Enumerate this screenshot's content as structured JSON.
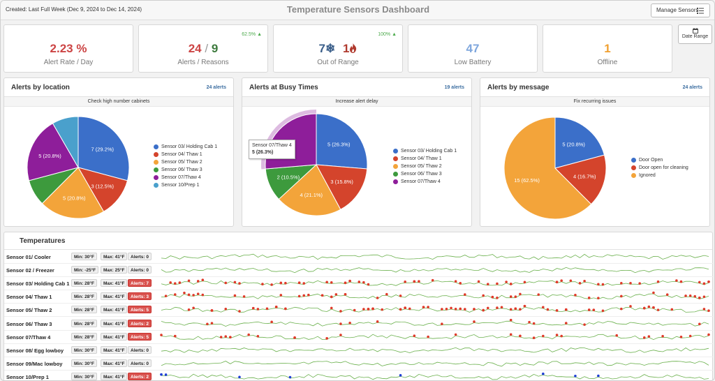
{
  "header": {
    "created": "Created: Last Full Week (Dec 9, 2024 to Dec 14, 2024)",
    "title": "Temperature Sensors Dashboard",
    "manage_label": "Manage Sensors",
    "date_range_label": "Date Range"
  },
  "kpis": {
    "alert_rate": {
      "value": "2.23 %",
      "label": "Alert Rate / Day",
      "color": "#cc4444"
    },
    "alerts_reasons": {
      "alerts": "24",
      "sep": "/",
      "reasons": "9",
      "label": "Alerts / Reasons",
      "corner": "62.5%"
    },
    "out_of_range": {
      "cold": "7",
      "hot": "1",
      "label": "Out of Range",
      "corner": "100%"
    },
    "low_battery": {
      "value": "47",
      "label": "Low Battery",
      "color": "#7fa7dd"
    },
    "offline": {
      "value": "1",
      "label": "Offline",
      "color": "#f0a030"
    }
  },
  "panels": [
    {
      "title": "Alerts by location",
      "count": "24 alerts",
      "subtitle": "Check high number cabinets"
    },
    {
      "title": "Alerts at Busy Times",
      "count": "19 alerts",
      "subtitle": "Increase alert delay",
      "tooltip": {
        "line1": "Sensor 07/Thaw 4",
        "line2": "5 (26.3%)"
      }
    },
    {
      "title": "Alerts by message",
      "count": "24 alerts",
      "subtitle": "Fix recurring issues"
    }
  ],
  "chart_data": [
    {
      "type": "pie",
      "title": "Alerts by location",
      "slices": [
        {
          "name": "Sensor 03/ Holding Cab 1",
          "value": 7,
          "label": "7 (29.2%)",
          "color": "#3b6fc9"
        },
        {
          "name": "Sensor 04/ Thaw 1",
          "value": 3,
          "label": "3 (12.5%)",
          "color": "#d4442c"
        },
        {
          "name": "Sensor 05/ Thaw 2",
          "value": 5,
          "label": "5 (20.8%)",
          "color": "#f3a43a"
        },
        {
          "name": "Sensor 06/ Thaw 3",
          "value": 2,
          "label": "",
          "color": "#3d9a3d"
        },
        {
          "name": "Sensor 07/Thaw 4",
          "value": 5,
          "label": "5 (20.8%)",
          "color": "#8e1e9a"
        },
        {
          "name": "Sensor 10/Prep 1",
          "value": 2,
          "label": "",
          "color": "#4aa0cc"
        }
      ],
      "legend": "right"
    },
    {
      "type": "pie",
      "title": "Alerts at Busy Times",
      "slices": [
        {
          "name": "Sensor 03/ Holding Cab 1",
          "value": 5,
          "label": "5 (26.3%)",
          "color": "#3b6fc9"
        },
        {
          "name": "Sensor 04/ Thaw 1",
          "value": 3,
          "label": "3 (15.8%)",
          "color": "#d4442c"
        },
        {
          "name": "Sensor 05/ Thaw 2",
          "value": 4,
          "label": "4 (21.1%)",
          "color": "#f3a43a"
        },
        {
          "name": "Sensor 06/ Thaw 3",
          "value": 2,
          "label": "2 (10.5%)",
          "color": "#3d9a3d"
        },
        {
          "name": "Sensor 07/Thaw 4",
          "value": 5,
          "label": "",
          "color": "#8e1e9a"
        }
      ],
      "legend": "right"
    },
    {
      "type": "pie",
      "title": "Alerts by message",
      "slices": [
        {
          "name": "Door Open",
          "value": 5,
          "label": "5 (20.8%)",
          "color": "#3b6fc9"
        },
        {
          "name": "Door open for cleaning",
          "value": 4,
          "label": "4 (16.7%)",
          "color": "#d4442c"
        },
        {
          "name": "Ignored",
          "value": 15,
          "label": "15 (62.5%)",
          "color": "#f3a43a"
        }
      ],
      "legend": "right"
    }
  ],
  "temperatures": {
    "title": "Temperatures",
    "rows": [
      {
        "name": "Sensor 01/ Cooler",
        "min": "Min: 30°F",
        "max": "Max: 41°F",
        "alerts": "Alerts: 0",
        "hot": false,
        "dots": 0,
        "dot_color": "#e03a2a"
      },
      {
        "name": "Sensor 02 / Freezer",
        "min": "Min: -25°F",
        "max": "Max: 25°F",
        "alerts": "Alerts: 0",
        "hot": false,
        "dots": 0,
        "dot_color": "#e03a2a"
      },
      {
        "name": "Sensor 03/ Holding Cab 1",
        "min": "Min: 28°F",
        "max": "Max: 41°F",
        "alerts": "Alerts: 7",
        "hot": true,
        "dots": 60,
        "dot_color": "#e03a2a"
      },
      {
        "name": "Sensor 04/ Thaw 1",
        "min": "Min: 28°F",
        "max": "Max: 41°F",
        "alerts": "Alerts: 3",
        "hot": true,
        "dots": 45,
        "dot_color": "#e03a2a"
      },
      {
        "name": "Sensor 05/ Thaw 2",
        "min": "Min: 28°F",
        "max": "Max: 41°F",
        "alerts": "Alerts: 5",
        "hot": true,
        "dots": 80,
        "dot_color": "#e03a2a"
      },
      {
        "name": "Sensor 06/ Thaw 3",
        "min": "Min: 28°F",
        "max": "Max: 41°F",
        "alerts": "Alerts: 2",
        "hot": true,
        "dots": 14,
        "dot_color": "#e03a2a"
      },
      {
        "name": "Sensor 07/Thaw 4",
        "min": "Min: 28°F",
        "max": "Max: 41°F",
        "alerts": "Alerts: 5",
        "hot": true,
        "dots": 32,
        "dot_color": "#e03a2a"
      },
      {
        "name": "Sensor 08/ Egg lowboy",
        "min": "Min: 30°F",
        "max": "Max: 41°F",
        "alerts": "Alerts: 0",
        "hot": false,
        "dots": 0,
        "dot_color": "#e03a2a"
      },
      {
        "name": "Sensor 09/Mac lowboy",
        "min": "Min: 30°F",
        "max": "Max: 41°F",
        "alerts": "Alerts: 0",
        "hot": false,
        "dots": 0,
        "dot_color": "#e03a2a"
      },
      {
        "name": "Sensor 10/Prep 1",
        "min": "Min: 30°F",
        "max": "Max: 41°F",
        "alerts": "Alerts: 2",
        "hot": true,
        "dots": 9,
        "dot_color": "#1f3fd6"
      }
    ]
  }
}
